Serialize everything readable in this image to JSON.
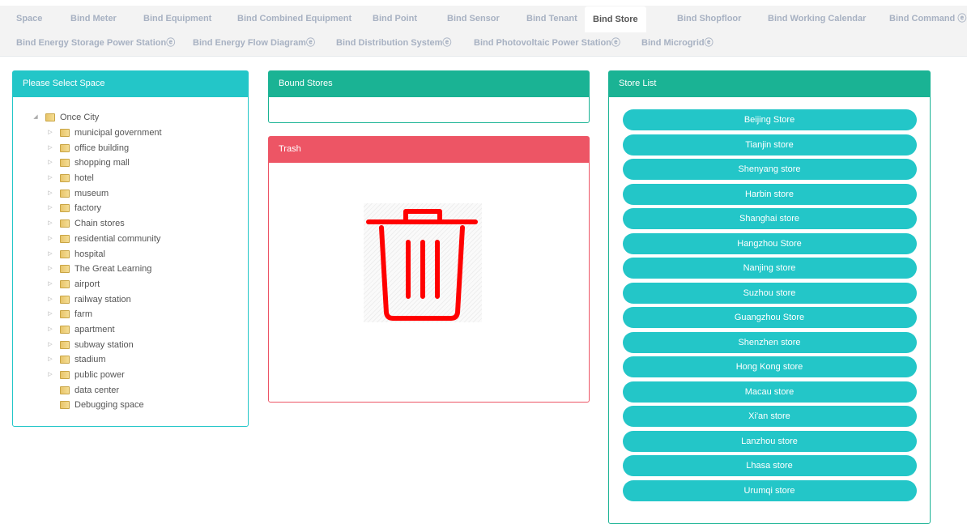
{
  "tabs_row1": [
    "Space",
    "Bind Meter",
    "Bind Equipment",
    "Bind Combined Equipment",
    "Bind Point",
    "Bind Sensor",
    "Bind Tenant",
    "Bind Store",
    "Bind Shopfloor",
    "Bind Working Calendar",
    "Bind Command ⓔ"
  ],
  "tabs_row2": [
    "Bind Energy Storage Power Stationⓔ",
    "Bind Energy Flow Diagramⓔ",
    "Bind Distribution Systemⓔ",
    "Bind Photovoltaic Power Stationⓔ",
    "Bind Microgridⓔ"
  ],
  "active_tab": "Bind Store",
  "space_panel": {
    "title": "Please Select Space",
    "root": "Once City",
    "children": [
      "municipal government",
      "office building",
      "shopping mall",
      "hotel",
      "museum",
      "factory",
      "Chain stores",
      "residential community",
      "hospital",
      "The Great Learning",
      "airport",
      "railway station",
      "farm",
      "apartment",
      "subway station",
      "stadium",
      "public power"
    ],
    "leaves": [
      "data center",
      "Debugging space"
    ]
  },
  "bound_panel": {
    "title": "Bound Stores"
  },
  "trash_panel": {
    "title": "Trash"
  },
  "store_panel": {
    "title": "Store List",
    "stores": [
      "Beijing Store",
      "Tianjin store",
      "Shenyang store",
      "Harbin store",
      "Shanghai store",
      "Hangzhou Store",
      "Nanjing store",
      "Suzhou store",
      "Guangzhou Store",
      "Shenzhen store",
      "Hong Kong store",
      "Macau store",
      "Xi'an store",
      "Lanzhou store",
      "Lhasa store",
      "Urumqi store"
    ]
  },
  "colors": {
    "teal": "#23c6c8",
    "green": "#1ab394",
    "red": "#ed5565",
    "trash_icon": "#ff0000"
  }
}
